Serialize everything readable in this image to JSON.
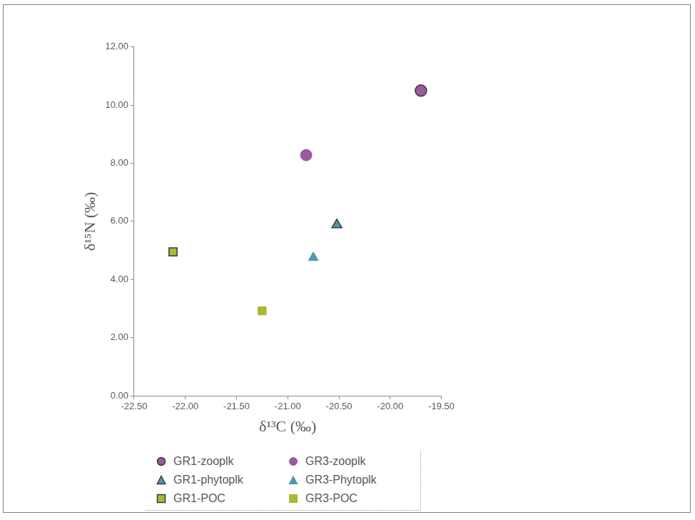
{
  "chart_data": {
    "type": "scatter",
    "x_label": "δ¹³C (‰)",
    "y_label": "δ¹⁵N (‰)",
    "xlim": [
      -22.5,
      -19.5
    ],
    "xticks": [
      {
        "value": -22.5,
        "label": "-22.50"
      },
      {
        "value": -22,
        "label": "-22.00"
      },
      {
        "value": -21.5,
        "label": "-21.50"
      },
      {
        "value": -21,
        "label": "-21.00"
      },
      {
        "value": -20.5,
        "label": "-20.50"
      },
      {
        "value": -20,
        "label": "-20.00"
      },
      {
        "value": -19.5,
        "label": "-19.50"
      }
    ],
    "ylim": [
      0,
      12
    ],
    "yticks": [
      {
        "value": 0,
        "label": "0.00"
      },
      {
        "value": 2,
        "label": "2.00"
      },
      {
        "value": 4,
        "label": "4.00"
      },
      {
        "value": 6,
        "label": "6.00"
      },
      {
        "value": 8,
        "label": "8.00"
      },
      {
        "value": 10,
        "label": "10.00"
      },
      {
        "value": 12,
        "label": "12.00"
      }
    ],
    "grid": false,
    "legend": "bottom",
    "series": [
      {
        "name": "GR1-zooplk",
        "color": "#9a5a9e",
        "marker": "circle",
        "x": [
          -19.7
        ],
        "values": [
          10.5
        ]
      },
      {
        "name": "GR3-zooplk",
        "color": "#9a5a9e",
        "marker": "circle",
        "x": [
          -20.82
        ],
        "values": [
          8.28
        ]
      },
      {
        "name": "GR1-phytoplk",
        "color": "#4b9aab",
        "marker": "triangle",
        "x": [
          -20.52
        ],
        "values": [
          5.88
        ]
      },
      {
        "name": "GR3-Phytoplk",
        "color": "#4b9aab",
        "marker": "triangle",
        "x": [
          -20.75
        ],
        "values": [
          4.75
        ]
      },
      {
        "name": "GR1-POC",
        "color": "#abb833",
        "marker": "square",
        "x": [
          -22.12
        ],
        "values": [
          4.95
        ]
      },
      {
        "name": "GR3-POC",
        "color": "#abb833",
        "marker": "square",
        "x": [
          -21.25
        ],
        "values": [
          2.92
        ]
      }
    ]
  }
}
